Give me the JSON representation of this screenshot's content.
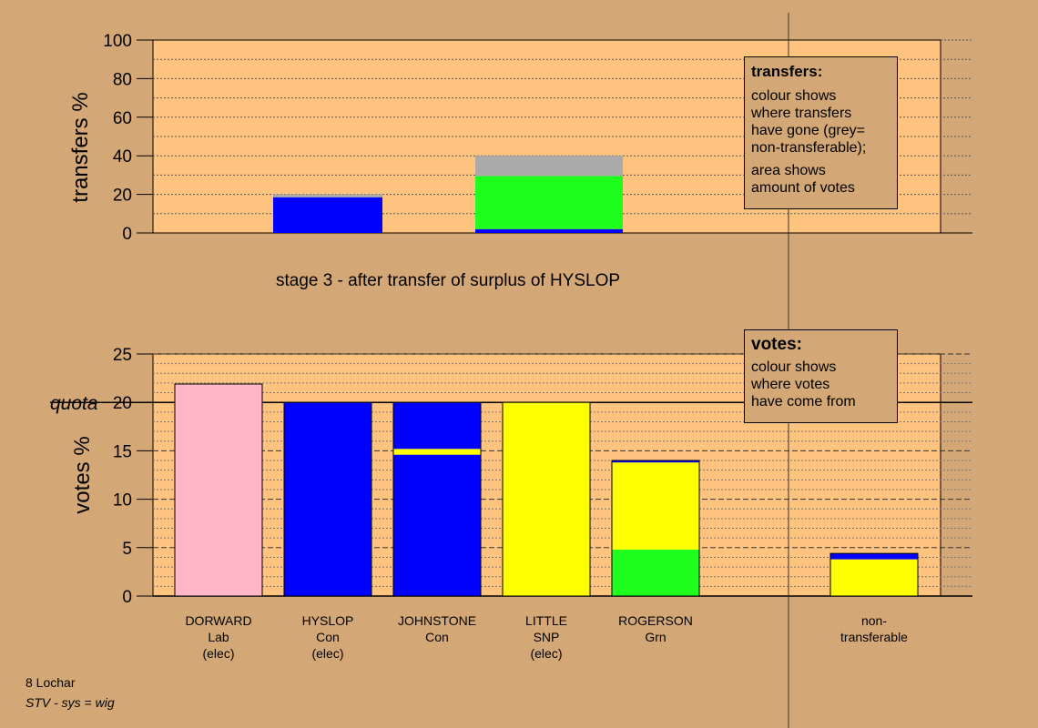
{
  "colors": {
    "background": "#d4a876",
    "plot_bg": "#ffc380",
    "Lab": "#ffb6c8",
    "Con": "#0000ff",
    "SNP": "#ffff00",
    "Grn": "#1eff1e",
    "non_transferable": "#aaaaaa"
  },
  "transfers_chart": {
    "ylabel": "transfers %",
    "yticks": [
      "0",
      "20",
      "40",
      "60",
      "80",
      "100"
    ],
    "caption": "stage 3 - after transfer of surplus of HYSLOP"
  },
  "votes_chart": {
    "ylabel": "votes %",
    "yticks": [
      "0",
      "5",
      "10",
      "15",
      "20",
      "25"
    ],
    "quota_label": "quota"
  },
  "legend_transfers": {
    "title": "transfers:",
    "p1": "colour shows\nwhere transfers\nhave gone (grey=\nnon-transferable);",
    "p2": "area shows\namount of votes"
  },
  "legend_votes": {
    "title": "votes:",
    "p1": "colour shows\nwhere votes\nhave come from"
  },
  "footer": {
    "line1": "8 Lochar",
    "line2": "STV - sys = wig"
  },
  "chart_data": [
    {
      "type": "bar",
      "title": "",
      "ylabel": "transfers %",
      "ylim": [
        0,
        100
      ],
      "grid": true,
      "caption": "stage 3 - after transfer of surplus of HYSLOP",
      "bars": [
        {
          "id": "transfer-small",
          "x_start": 1.1,
          "x_end": 2.1,
          "segments": [
            {
              "party": "Con",
              "value": 18.5
            },
            {
              "party": "non_transferable",
              "value": 1.5
            }
          ]
        },
        {
          "id": "transfer-large",
          "x_start": 2.95,
          "x_end": 4.3,
          "segments": [
            {
              "party": "Con",
              "value": 2
            },
            {
              "party": "Grn",
              "value": 27.5
            },
            {
              "party": "non_transferable",
              "value": 10.5
            }
          ]
        }
      ]
    },
    {
      "type": "bar",
      "title": "",
      "ylabel": "votes %",
      "ylim": [
        0,
        25
      ],
      "quota": 20,
      "grid": true,
      "categories": [
        "DORWARD\nLab\n(elec)",
        "HYSLOP\nCon\n(elec)",
        "JOHNSTONE\nCon",
        "LITTLE\nSNP\n(elec)",
        "ROGERSON\nGrn",
        "",
        "non-\ntransferable"
      ],
      "stacks": [
        [
          {
            "party": "Lab",
            "value": 21.9
          }
        ],
        [
          {
            "party": "Con",
            "value": 20
          }
        ],
        [
          {
            "party": "Con",
            "value": 14.6
          },
          {
            "party": "SNP",
            "value": 0.6
          },
          {
            "party": "Con",
            "value": 4.8
          }
        ],
        [
          {
            "party": "SNP",
            "value": 20
          }
        ],
        [
          {
            "party": "Grn",
            "value": 4.8
          },
          {
            "party": "SNP",
            "value": 9
          },
          {
            "party": "Con",
            "value": 0.2
          }
        ],
        [],
        [
          {
            "party": "SNP",
            "value": 3.8
          },
          {
            "party": "Con",
            "value": 0.6
          }
        ]
      ]
    }
  ]
}
